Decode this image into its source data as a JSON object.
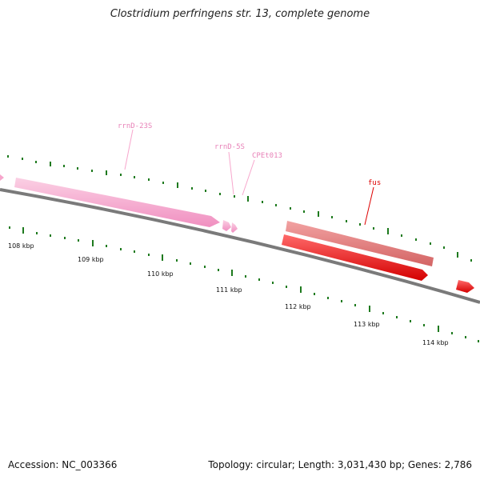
{
  "title": "Clostridium perfringens str. 13, complete genome",
  "footer": {
    "accession": "Accession: NC_003366",
    "info": "Topology: circular; Length: 3,031,430 bp; Genes: 2,786"
  },
  "colors": {
    "backbone": "#7a7a7a",
    "tick": "#1e7a1e",
    "rrna": "#f7a6cc",
    "rrna_label": "#e882b8",
    "cds_light": "#e57c7c",
    "cds": "#ff1a1a",
    "cds_label": "#dd0000"
  },
  "scale": {
    "labels": [
      "108 kbp",
      "109 kbp",
      "110 kbp",
      "111 kbp",
      "112 kbp",
      "113 kbp",
      "114 kbp"
    ]
  },
  "genes": [
    {
      "label": "rrnD-23S",
      "type": "rRNA"
    },
    {
      "label": "rrnD-5S",
      "type": "rRNA"
    },
    {
      "label": "CPEt013",
      "type": "tRNA"
    },
    {
      "label": "fus",
      "type": "CDS"
    }
  ]
}
